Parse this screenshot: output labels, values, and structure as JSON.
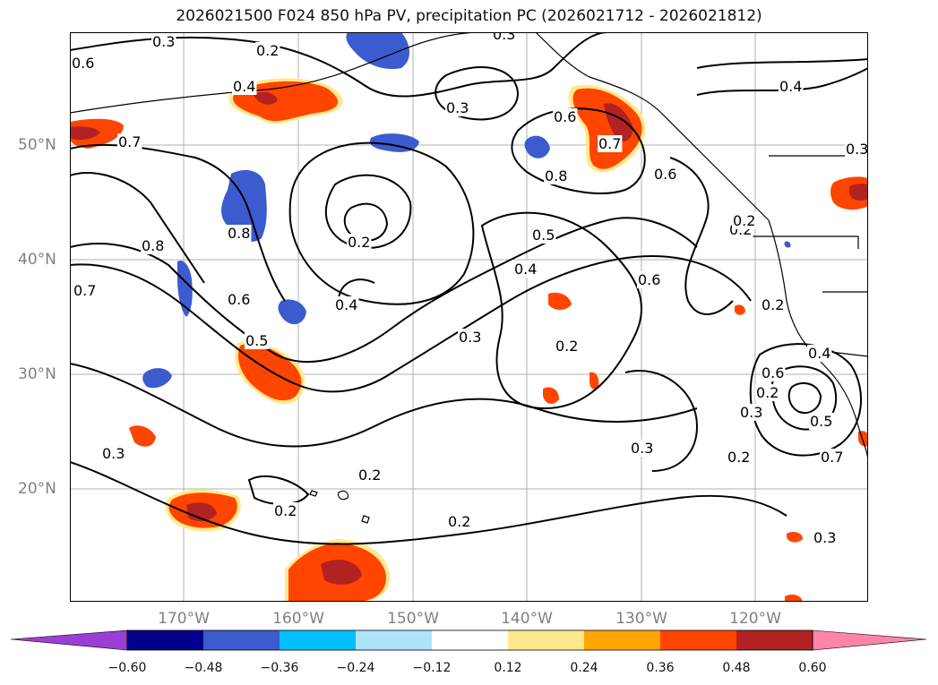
{
  "title": "2026021500 F024 850 hPa PV, precipitation PC (2026021712 - 2026021812)",
  "latitude_labels": [
    "50°N",
    "40°N",
    "30°N",
    "20°N"
  ],
  "longitude_labels": [
    "170°W",
    "160°W",
    "150°W",
    "140°W",
    "130°W",
    "120°W"
  ],
  "colorbar": {
    "colors": [
      "#9b3fd4",
      "#00008b",
      "#3b5bce",
      "#00bfff",
      "#aee4fb",
      "#ffffff",
      "#ffe98a",
      "#ffa500",
      "#ff4500",
      "#b22222",
      "#ff85a8"
    ],
    "tick_labels": [
      "−0.60",
      "−0.48",
      "−0.36",
      "−0.24",
      "−0.12",
      "0.12",
      "0.24",
      "0.36",
      "0.48",
      "0.60"
    ]
  },
  "contour_labels": [
    "0.3",
    "0.2",
    "0.6",
    "0.4",
    "0.7",
    "0.3",
    "0.6",
    "0.7",
    "0.4",
    "0.8",
    "0.3",
    "0.2",
    "0.8",
    "0.5",
    "0.6",
    "0.4",
    "0.6",
    "0.2",
    "0.7",
    "0.8",
    "0.6",
    "0.4",
    "0.2",
    "0.5",
    "0.3",
    "0.2",
    "0.6",
    "0.3",
    "0.2",
    "0.3",
    "0.3",
    "0.2",
    "0.2",
    "0.2",
    "0.3",
    "0.5",
    "0.7",
    "0.2",
    "0.3",
    "0.2",
    "0.4"
  ]
}
